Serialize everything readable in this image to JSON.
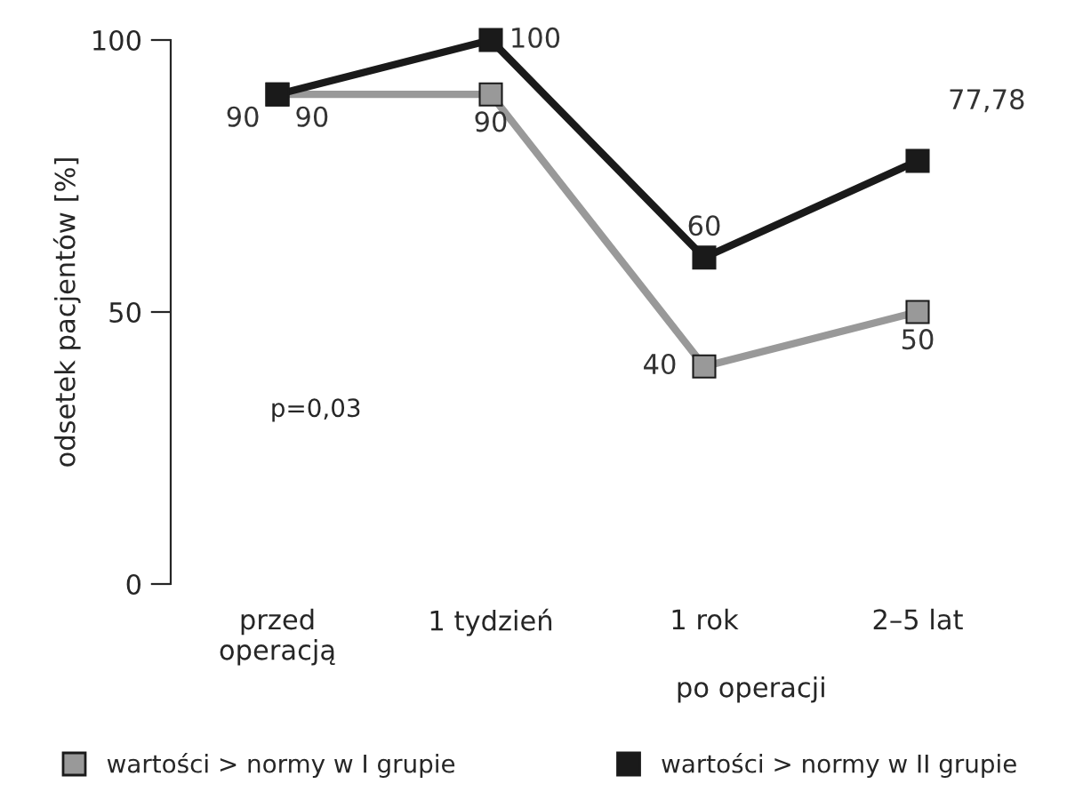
{
  "chart_data": {
    "type": "line",
    "ylabel": "odsetek pacjentów [%]",
    "xlabel": "po operacji",
    "categories": [
      "przed\noperacją",
      "1 tydzień",
      "1 rok",
      "2–5 lat"
    ],
    "series": [
      {
        "name": "wartości > normy w I grupie",
        "color": "#999999",
        "values": [
          90,
          90,
          40,
          50
        ],
        "value_labels": [
          "90",
          "90",
          "40",
          "50"
        ]
      },
      {
        "name": "wartości > normy w II grupie",
        "color": "#1a1a1a",
        "values": [
          90,
          100,
          60,
          77.78
        ],
        "value_labels": [
          "90",
          "100",
          "60",
          "77,78"
        ]
      }
    ],
    "ylim": [
      0,
      100
    ],
    "yticks": [
      0,
      50,
      100
    ],
    "grid": false,
    "legend": "bottom",
    "marker": "square",
    "line_style": "solid",
    "annotations": [
      "p=0,03"
    ]
  }
}
